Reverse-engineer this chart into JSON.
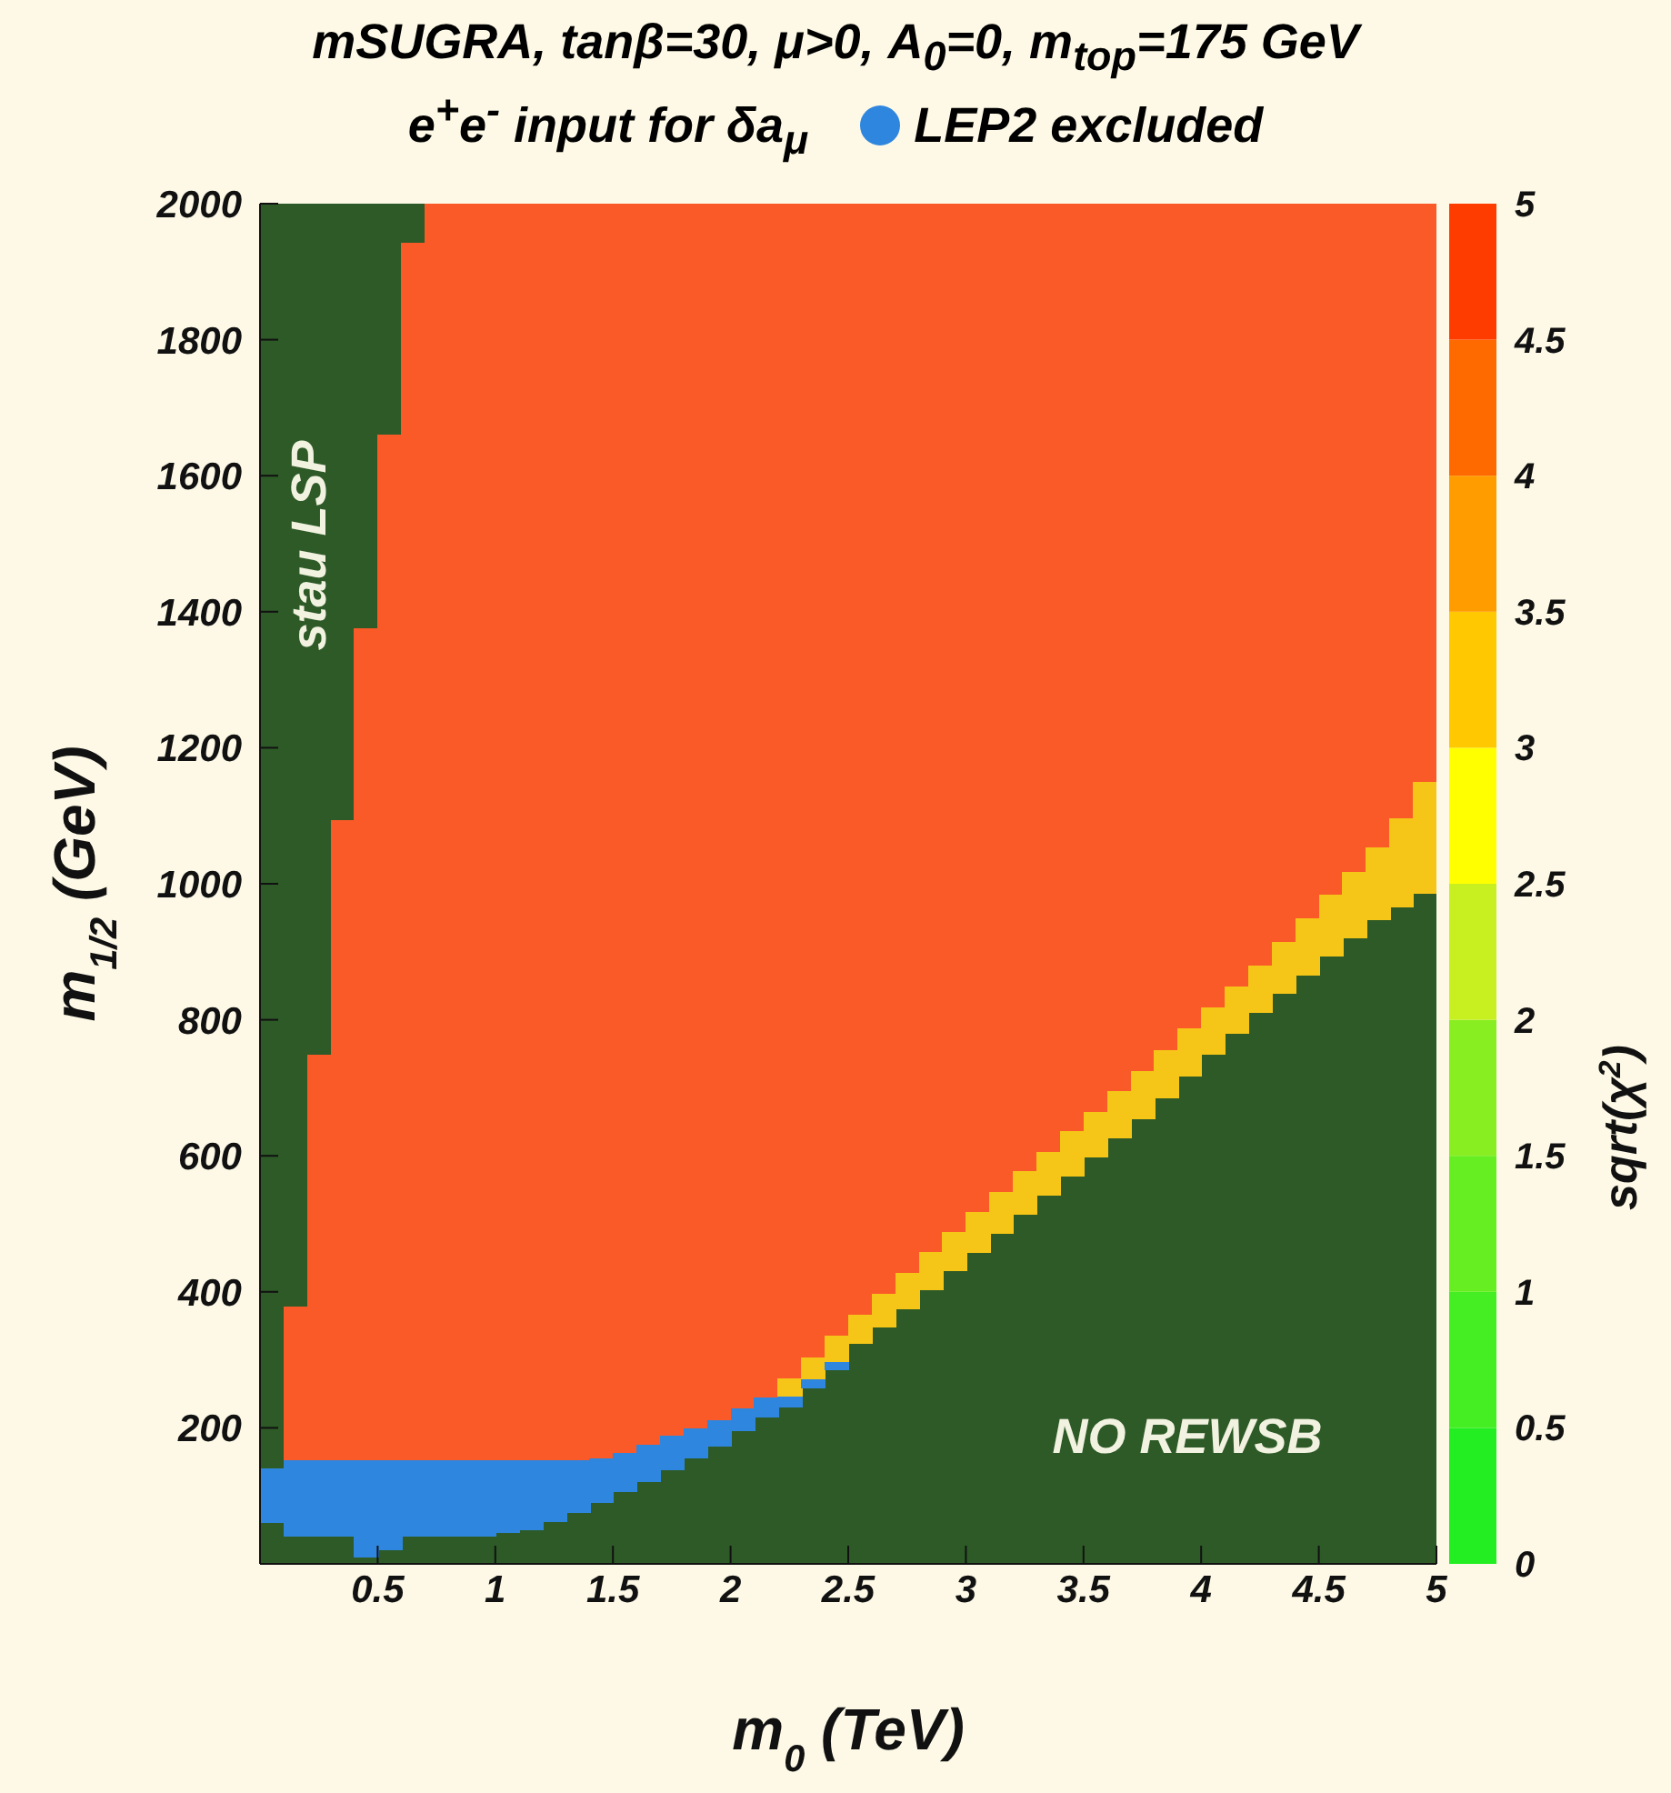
{
  "chart_data": {
    "type": "bar",
    "title": "mSUGRA, tanβ=30, μ>0, A$_{0}$=0, m$_{top}$=175 GeV",
    "subtitle": "e$^{+}$e$^{-}$ input for δa$_{μ}$",
    "xlabel": "m$_{0}$ (TeV)",
    "ylabel": "m$_{1/2}$ (GeV)",
    "clabel": "sqrt(χ$^{2}$)",
    "xlim": [
      0,
      5
    ],
    "xticks": [
      0.5,
      1,
      1.5,
      2,
      2.5,
      3,
      3.5,
      4,
      4.5,
      5
    ],
    "ylim": [
      0,
      2000
    ],
    "yticks": [
      200,
      400,
      600,
      800,
      1000,
      1200,
      1400,
      1600,
      1800,
      2000
    ],
    "clim": [
      0,
      5
    ],
    "cticks": [
      0,
      0.5,
      1,
      1.5,
      2,
      2.5,
      3,
      3.5,
      4,
      4.5,
      5
    ],
    "legend": "top",
    "annotations": [
      "stau LSP",
      "NO REWSB"
    ],
    "series": [
      {
        "color": "#2d5a27",
        "x": [
          0.05,
          0.15,
          0.25,
          0.35,
          0.45,
          0.55,
          0.65
        ],
        "base": [
          140,
          379,
          749,
          1093,
          1376,
          1660,
          1943
        ],
        "values": [
          1860,
          1621,
          1251,
          907,
          624,
          340,
          57
        ]
      },
      {
        "color": "#2d5a27",
        "x": [
          0.05,
          0.15,
          0.25,
          0.35,
          0.45,
          0.55,
          0.65,
          0.75,
          0.85,
          0.95,
          1.05,
          1.15,
          1.25,
          1.35,
          1.45,
          1.55,
          1.65,
          1.75,
          1.85,
          1.95,
          2.05,
          2.15,
          2.25,
          2.35,
          2.45,
          2.55,
          2.65,
          2.75,
          2.85,
          2.95,
          3.05,
          3.15,
          3.25,
          3.35,
          3.45,
          3.55,
          3.65,
          3.75,
          3.85,
          3.95,
          4.05,
          4.15,
          4.25,
          4.35,
          4.45,
          4.55,
          4.65,
          4.75,
          4.85,
          4.95
        ],
        "base": [
          0,
          0,
          0,
          0,
          0,
          0,
          0,
          0,
          0,
          0,
          0,
          0,
          0,
          0,
          0,
          0,
          0,
          0,
          0,
          0,
          0,
          0,
          0,
          0,
          0,
          0,
          0,
          0,
          0,
          0,
          0,
          0,
          0,
          0,
          0,
          0,
          0,
          0,
          0,
          0,
          0,
          0,
          0,
          0,
          0,
          0,
          0,
          0,
          0,
          0
        ],
        "values": [
          60,
          40,
          40,
          40,
          10,
          20,
          40,
          40,
          40,
          40,
          45,
          50,
          62,
          75,
          90,
          105,
          120,
          138,
          155,
          173,
          195,
          215,
          230,
          258,
          285,
          323,
          348,
          374,
          402,
          430,
          457,
          485,
          513,
          541,
          570,
          598,
          626,
          654,
          685,
          716,
          748,
          779,
          810,
          838,
          865,
          893,
          920,
          947,
          965,
          985
        ]
      },
      {
        "color": "#fa5a28",
        "x": [
          0.15,
          0.25,
          0.35,
          0.45,
          0.55,
          0.65,
          0.75,
          0.85,
          0.95,
          1.05,
          1.15,
          1.25,
          1.35,
          1.45,
          1.55,
          1.65,
          1.75,
          1.85,
          1.95,
          2.05,
          2.15,
          2.25,
          2.35,
          2.45,
          2.55,
          2.65,
          2.75,
          2.85,
          2.95,
          3.05,
          3.15,
          3.25,
          3.35,
          3.45,
          3.55,
          3.65,
          3.75,
          3.85,
          3.95,
          4.05,
          4.15,
          4.25,
          4.35,
          4.45,
          4.55,
          4.65,
          4.75,
          4.85,
          4.95
        ],
        "base": [
          152,
          152,
          152,
          152,
          152,
          152,
          152,
          152,
          152,
          152,
          152,
          152,
          152,
          155,
          163,
          175,
          188,
          199,
          211,
          228,
          245,
          273,
          304,
          335,
          366,
          397,
          428,
          458,
          488,
          517,
          547,
          577,
          606,
          636,
          665,
          695,
          724,
          755,
          787,
          818,
          849,
          880,
          915,
          949,
          984,
          1018,
          1053,
          1096,
          1150
        ],
        "values": [
          227,
          597,
          941,
          1224,
          1508,
          1791,
          1848,
          1848,
          1848,
          1848,
          1848,
          1848,
          1848,
          1845,
          1837,
          1825,
          1812,
          1801,
          1789,
          1772,
          1755,
          1727,
          1696,
          1665,
          1634,
          1603,
          1572,
          1542,
          1512,
          1483,
          1453,
          1423,
          1394,
          1364,
          1335,
          1305,
          1276,
          1245,
          1213,
          1182,
          1151,
          1120,
          1085,
          1051,
          1016,
          982,
          947,
          904,
          850
        ]
      },
      {
        "color": "#f5c518",
        "x": [
          2.25,
          2.35,
          2.45,
          2.55,
          2.65,
          2.75,
          2.85,
          2.95,
          3.05,
          3.15,
          3.25,
          3.35,
          3.45,
          3.55,
          3.65,
          3.75,
          3.85,
          3.95,
          4.05,
          4.15,
          4.25,
          4.35,
          4.45,
          4.55,
          4.65,
          4.75,
          4.85,
          4.95
        ],
        "base": [
          246,
          272,
          297,
          323,
          348,
          374,
          402,
          430,
          457,
          485,
          513,
          541,
          570,
          598,
          626,
          654,
          685,
          716,
          748,
          779,
          810,
          838,
          865,
          893,
          920,
          947,
          965,
          985
        ],
        "values": [
          27,
          32,
          38,
          43,
          49,
          54,
          56,
          58,
          60,
          62,
          64,
          65,
          66,
          67,
          69,
          70,
          70,
          71,
          70,
          70,
          70,
          77,
          84,
          91,
          98,
          106,
          131,
          165
        ]
      },
      {
        "name": "LEP2 excluded",
        "color": "#2e86de",
        "x": [
          0.05,
          0.15,
          0.25,
          0.35,
          0.45,
          0.55,
          0.65,
          0.75,
          0.85,
          0.95,
          1.05,
          1.15,
          1.25,
          1.35,
          1.45,
          1.55,
          1.65,
          1.75,
          1.85,
          1.95,
          2.05,
          2.15,
          2.25,
          2.35,
          2.45
        ],
        "base": [
          60,
          40,
          40,
          40,
          10,
          20,
          40,
          40,
          40,
          40,
          45,
          50,
          62,
          75,
          90,
          105,
          120,
          138,
          155,
          173,
          195,
          215,
          230,
          258,
          285
        ],
        "values": [
          80,
          112,
          112,
          112,
          142,
          132,
          112,
          112,
          112,
          112,
          107,
          102,
          90,
          77,
          65,
          58,
          55,
          50,
          44,
          38,
          33,
          30,
          16,
          14,
          12
        ]
      }
    ]
  }
}
